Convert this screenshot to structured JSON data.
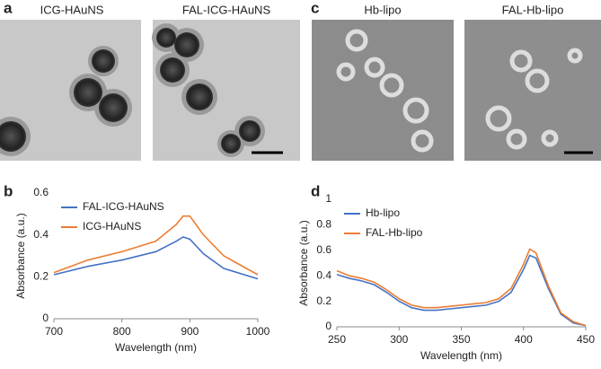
{
  "panel_labels": [
    "a",
    "b",
    "c",
    "d"
  ],
  "images": [
    {
      "title": "ICG-HAuNS"
    },
    {
      "title": "FAL-ICG-HAuNS"
    },
    {
      "title": "Hb-lipo"
    },
    {
      "title": "FAL-Hb-lipo"
    }
  ],
  "chart_data": [
    {
      "type": "line",
      "x_label": "Wavelength (nm)",
      "y_label": "Absorbance (a.u.)",
      "x": [
        700,
        750,
        800,
        850,
        880,
        890,
        900,
        920,
        950,
        1000
      ],
      "series": [
        {
          "name": "FAL-ICG-HAuNS",
          "color": "#4472c4",
          "values": [
            0.21,
            0.25,
            0.28,
            0.32,
            0.37,
            0.39,
            0.38,
            0.31,
            0.24,
            0.19
          ]
        },
        {
          "name": "ICG-HAuNS",
          "color": "#ed7d31",
          "values": [
            0.22,
            0.28,
            0.32,
            0.37,
            0.45,
            0.49,
            0.49,
            0.4,
            0.3,
            0.21
          ]
        }
      ],
      "xlim": [
        700,
        1000
      ],
      "xticks": [
        700,
        800,
        900,
        1000
      ],
      "ylim": [
        0,
        0.6
      ],
      "yticks": [
        0,
        0.2,
        0.4,
        0.6
      ],
      "legend": "upper-left"
    },
    {
      "type": "line",
      "x_label": "Wavelength (nm)",
      "y_label": "Absorbance (a.u.)",
      "x": [
        250,
        260,
        270,
        280,
        290,
        300,
        310,
        320,
        330,
        340,
        350,
        360,
        370,
        380,
        390,
        400,
        405,
        410,
        420,
        430,
        440,
        450
      ],
      "series": [
        {
          "name": "Hb-lipo",
          "color": "#4472c4",
          "values": [
            0.41,
            0.38,
            0.36,
            0.33,
            0.27,
            0.2,
            0.15,
            0.13,
            0.13,
            0.14,
            0.15,
            0.16,
            0.17,
            0.2,
            0.27,
            0.45,
            0.56,
            0.54,
            0.3,
            0.1,
            0.03,
            0.01
          ]
        },
        {
          "name": "FAL-Hb-lipo",
          "color": "#ed7d31",
          "values": [
            0.44,
            0.4,
            0.38,
            0.35,
            0.29,
            0.22,
            0.17,
            0.15,
            0.15,
            0.16,
            0.17,
            0.18,
            0.19,
            0.22,
            0.3,
            0.49,
            0.61,
            0.58,
            0.32,
            0.11,
            0.04,
            0.01
          ]
        }
      ],
      "xlim": [
        250,
        450
      ],
      "xticks": [
        250,
        300,
        350,
        400,
        450
      ],
      "ylim": [
        0,
        1
      ],
      "yticks": [
        0,
        0.2,
        0.4,
        0.6,
        0.8,
        1
      ],
      "legend": "upper-left"
    }
  ]
}
